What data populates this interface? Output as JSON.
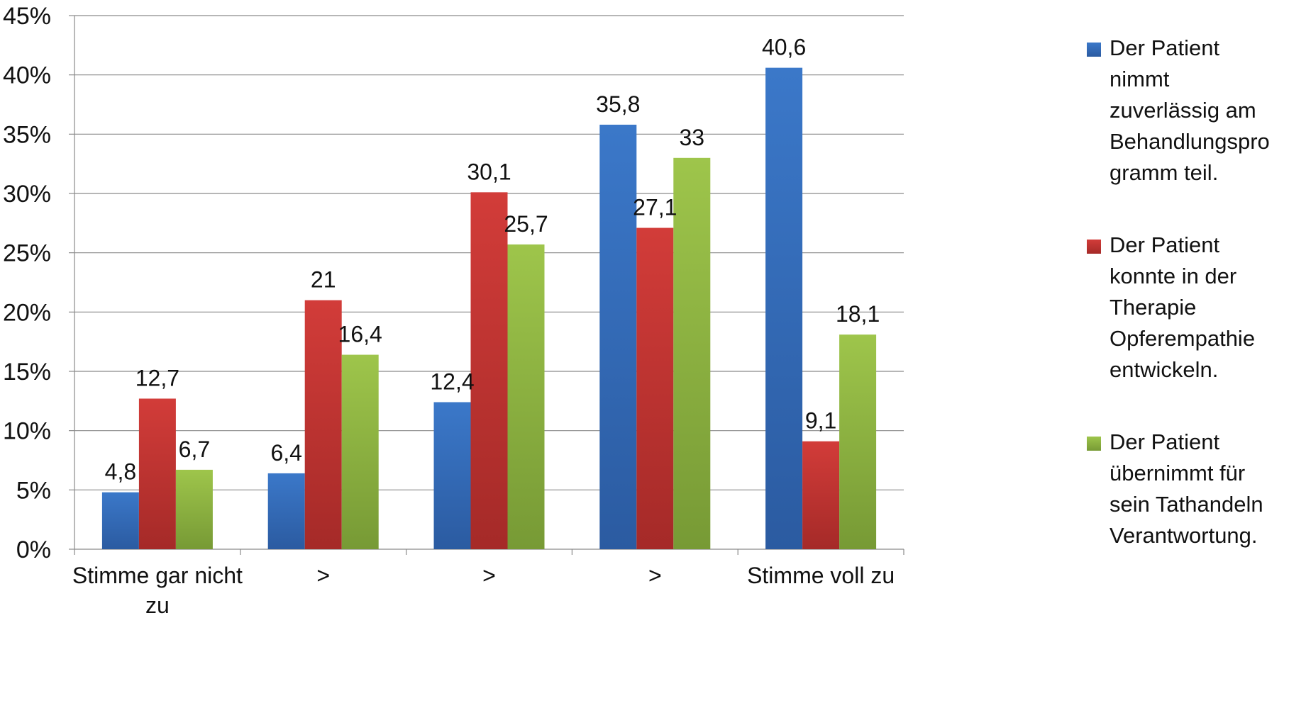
{
  "chart_data": {
    "type": "bar",
    "categories": [
      [
        "Stimme gar nicht",
        "zu"
      ],
      [
        ">"
      ],
      [
        ">"
      ],
      [
        ">"
      ],
      [
        "Stimme voll zu"
      ]
    ],
    "series": [
      {
        "name": "Der Patient nimmt zuverlässig am Behandlungsprogramm teil.",
        "legend_lines": [
          "Der Patient",
          "nimmt",
          "zuverlässig am",
          "Behandlungspro",
          "gramm teil."
        ],
        "values": [
          4.8,
          6.4,
          12.4,
          35.8,
          40.6
        ],
        "labels": [
          "4,8",
          "6,4",
          "12,4",
          "35,8",
          "40,6"
        ],
        "color": "#3b78c9",
        "color_dark": "#2b5ba1"
      },
      {
        "name": "Der Patient konnte in der Therapie Opferempathie entwickeln.",
        "legend_lines": [
          "Der Patient",
          "konnte in der",
          "Therapie",
          "Opferempathie",
          "entwickeln."
        ],
        "values": [
          12.7,
          21,
          30.1,
          27.1,
          9.1
        ],
        "labels": [
          "12,7",
          "21",
          "30,1",
          "27,1",
          "9,1"
        ],
        "color": "#d23c39",
        "color_dark": "#a52a28"
      },
      {
        "name": "Der Patient übernimmt für sein Tathandeln Verantwortung.",
        "legend_lines": [
          "Der Patient",
          "übernimmt für",
          "sein Tathandeln",
          "Verantwortung."
        ],
        "values": [
          6.7,
          16.4,
          25.7,
          33,
          18.1
        ],
        "labels": [
          "6,7",
          "16,4",
          "25,7",
          "33",
          "18,1"
        ],
        "color": "#9ec54b",
        "color_dark": "#779a35"
      }
    ],
    "yticks": [
      "0%",
      "5%",
      "10%",
      "15%",
      "20%",
      "25%",
      "30%",
      "35%",
      "40%",
      "45%"
    ],
    "ylim": [
      0,
      45
    ],
    "ytick_step": 5,
    "grid": true,
    "legend_position": "right"
  }
}
